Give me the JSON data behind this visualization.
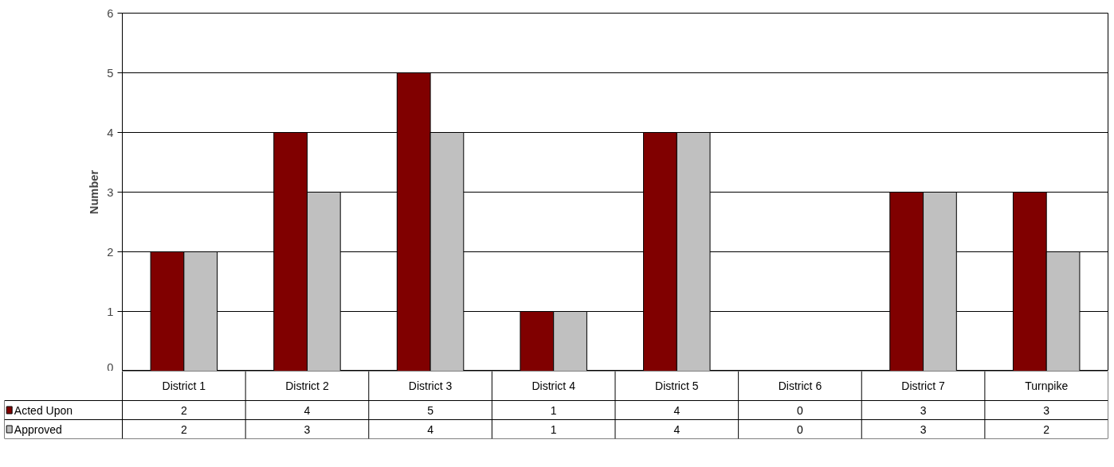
{
  "chart_data": {
    "type": "bar",
    "ylabel": "Number",
    "categories": [
      "District 1",
      "District 2",
      "District 3",
      "District 4",
      "District 5",
      "District 6",
      "District 7",
      "Turnpike"
    ],
    "series": [
      {
        "name": "Acted Upon",
        "color": "#800000",
        "values": [
          2,
          4,
          5,
          1,
          4,
          0,
          3,
          3
        ]
      },
      {
        "name": "Approved",
        "color": "#c0c0c0",
        "values": [
          2,
          3,
          4,
          1,
          4,
          0,
          3,
          2
        ]
      }
    ],
    "ylim": [
      0,
      6
    ],
    "yticks": [
      0,
      1,
      2,
      3,
      4,
      5,
      6
    ],
    "grid": "y",
    "legend": "bottom left",
    "data_labels": true
  }
}
